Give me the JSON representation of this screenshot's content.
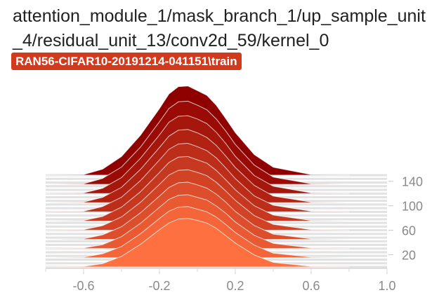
{
  "header": {
    "tag_name": "attention_module_1/mask_branch_1/up_sample_unit_4/residual_unit_13/conv2d_59/kernel_0",
    "run_name": "RAN56-CIFAR10-20191214-041151\\train"
  },
  "chart_data": {
    "type": "area",
    "mode": "offset histogram",
    "x": [
      -0.8,
      -0.6,
      -0.5,
      -0.4,
      -0.3,
      -0.2,
      -0.15,
      -0.1,
      -0.05,
      0.0,
      0.05,
      0.1,
      0.15,
      0.2,
      0.3,
      0.4,
      0.6,
      0.8
    ],
    "series": [
      {
        "step": 0,
        "values": [
          0,
          0.01,
          0.05,
          0.16,
          0.34,
          0.56,
          0.66,
          0.72,
          0.73,
          0.7,
          0.66,
          0.58,
          0.47,
          0.36,
          0.18,
          0.07,
          0.01,
          0
        ]
      },
      {
        "step": 15,
        "values": [
          0,
          0.01,
          0.06,
          0.17,
          0.36,
          0.59,
          0.7,
          0.76,
          0.77,
          0.73,
          0.69,
          0.61,
          0.5,
          0.38,
          0.19,
          0.07,
          0.01,
          0
        ]
      },
      {
        "step": 30,
        "values": [
          0,
          0.01,
          0.06,
          0.18,
          0.38,
          0.62,
          0.74,
          0.8,
          0.81,
          0.77,
          0.73,
          0.64,
          0.53,
          0.4,
          0.2,
          0.08,
          0.01,
          0
        ]
      },
      {
        "step": 45,
        "values": [
          0,
          0.01,
          0.07,
          0.19,
          0.4,
          0.65,
          0.78,
          0.85,
          0.86,
          0.82,
          0.77,
          0.68,
          0.56,
          0.42,
          0.21,
          0.08,
          0.01,
          0
        ]
      },
      {
        "step": 60,
        "values": [
          0,
          0.01,
          0.07,
          0.2,
          0.42,
          0.69,
          0.83,
          0.9,
          0.91,
          0.87,
          0.82,
          0.72,
          0.59,
          0.45,
          0.22,
          0.09,
          0.01,
          0
        ]
      },
      {
        "step": 75,
        "values": [
          0,
          0.01,
          0.07,
          0.21,
          0.44,
          0.73,
          0.88,
          0.96,
          0.97,
          0.92,
          0.87,
          0.76,
          0.62,
          0.47,
          0.23,
          0.09,
          0.01,
          0
        ]
      },
      {
        "step": 90,
        "values": [
          0,
          0.01,
          0.08,
          0.22,
          0.47,
          0.78,
          0.94,
          1.02,
          1.03,
          0.98,
          0.92,
          0.81,
          0.66,
          0.5,
          0.24,
          0.1,
          0.01,
          0
        ]
      },
      {
        "step": 105,
        "values": [
          0,
          0.01,
          0.08,
          0.23,
          0.5,
          0.83,
          1.0,
          1.09,
          1.1,
          1.05,
          0.98,
          0.86,
          0.7,
          0.53,
          0.26,
          0.1,
          0.01,
          0
        ]
      },
      {
        "step": 120,
        "values": [
          0,
          0.01,
          0.08,
          0.24,
          0.53,
          0.88,
          1.07,
          1.16,
          1.17,
          1.12,
          1.05,
          0.92,
          0.75,
          0.56,
          0.27,
          0.11,
          0.01,
          0
        ]
      },
      {
        "step": 135,
        "values": [
          0,
          0.01,
          0.09,
          0.26,
          0.56,
          0.94,
          1.14,
          1.24,
          1.25,
          1.19,
          1.12,
          0.98,
          0.8,
          0.6,
          0.29,
          0.11,
          0.01,
          0
        ]
      },
      {
        "step": 150,
        "values": [
          0,
          0.01,
          0.09,
          0.28,
          0.6,
          1.0,
          1.22,
          1.33,
          1.34,
          1.27,
          1.2,
          1.05,
          0.85,
          0.64,
          0.31,
          0.12,
          0.01,
          0
        ]
      }
    ],
    "xlim": [
      -0.8,
      1.0
    ],
    "x_ticks": [
      "-0.6",
      "-0.2",
      "0.2",
      "0.6",
      "1.0"
    ],
    "x_tick_values": [
      -0.6,
      -0.2,
      0.2,
      0.6,
      1.0
    ],
    "y_ticks": [
      "20",
      "60",
      "100",
      "140"
    ],
    "y_tick_values": [
      20,
      60,
      100,
      140
    ],
    "step_range": [
      0,
      150
    ],
    "colors": {
      "newest": "#ff7040",
      "oldest": "#8f0000",
      "outline": "#ffffff",
      "badge": "#d33a1d"
    }
  }
}
